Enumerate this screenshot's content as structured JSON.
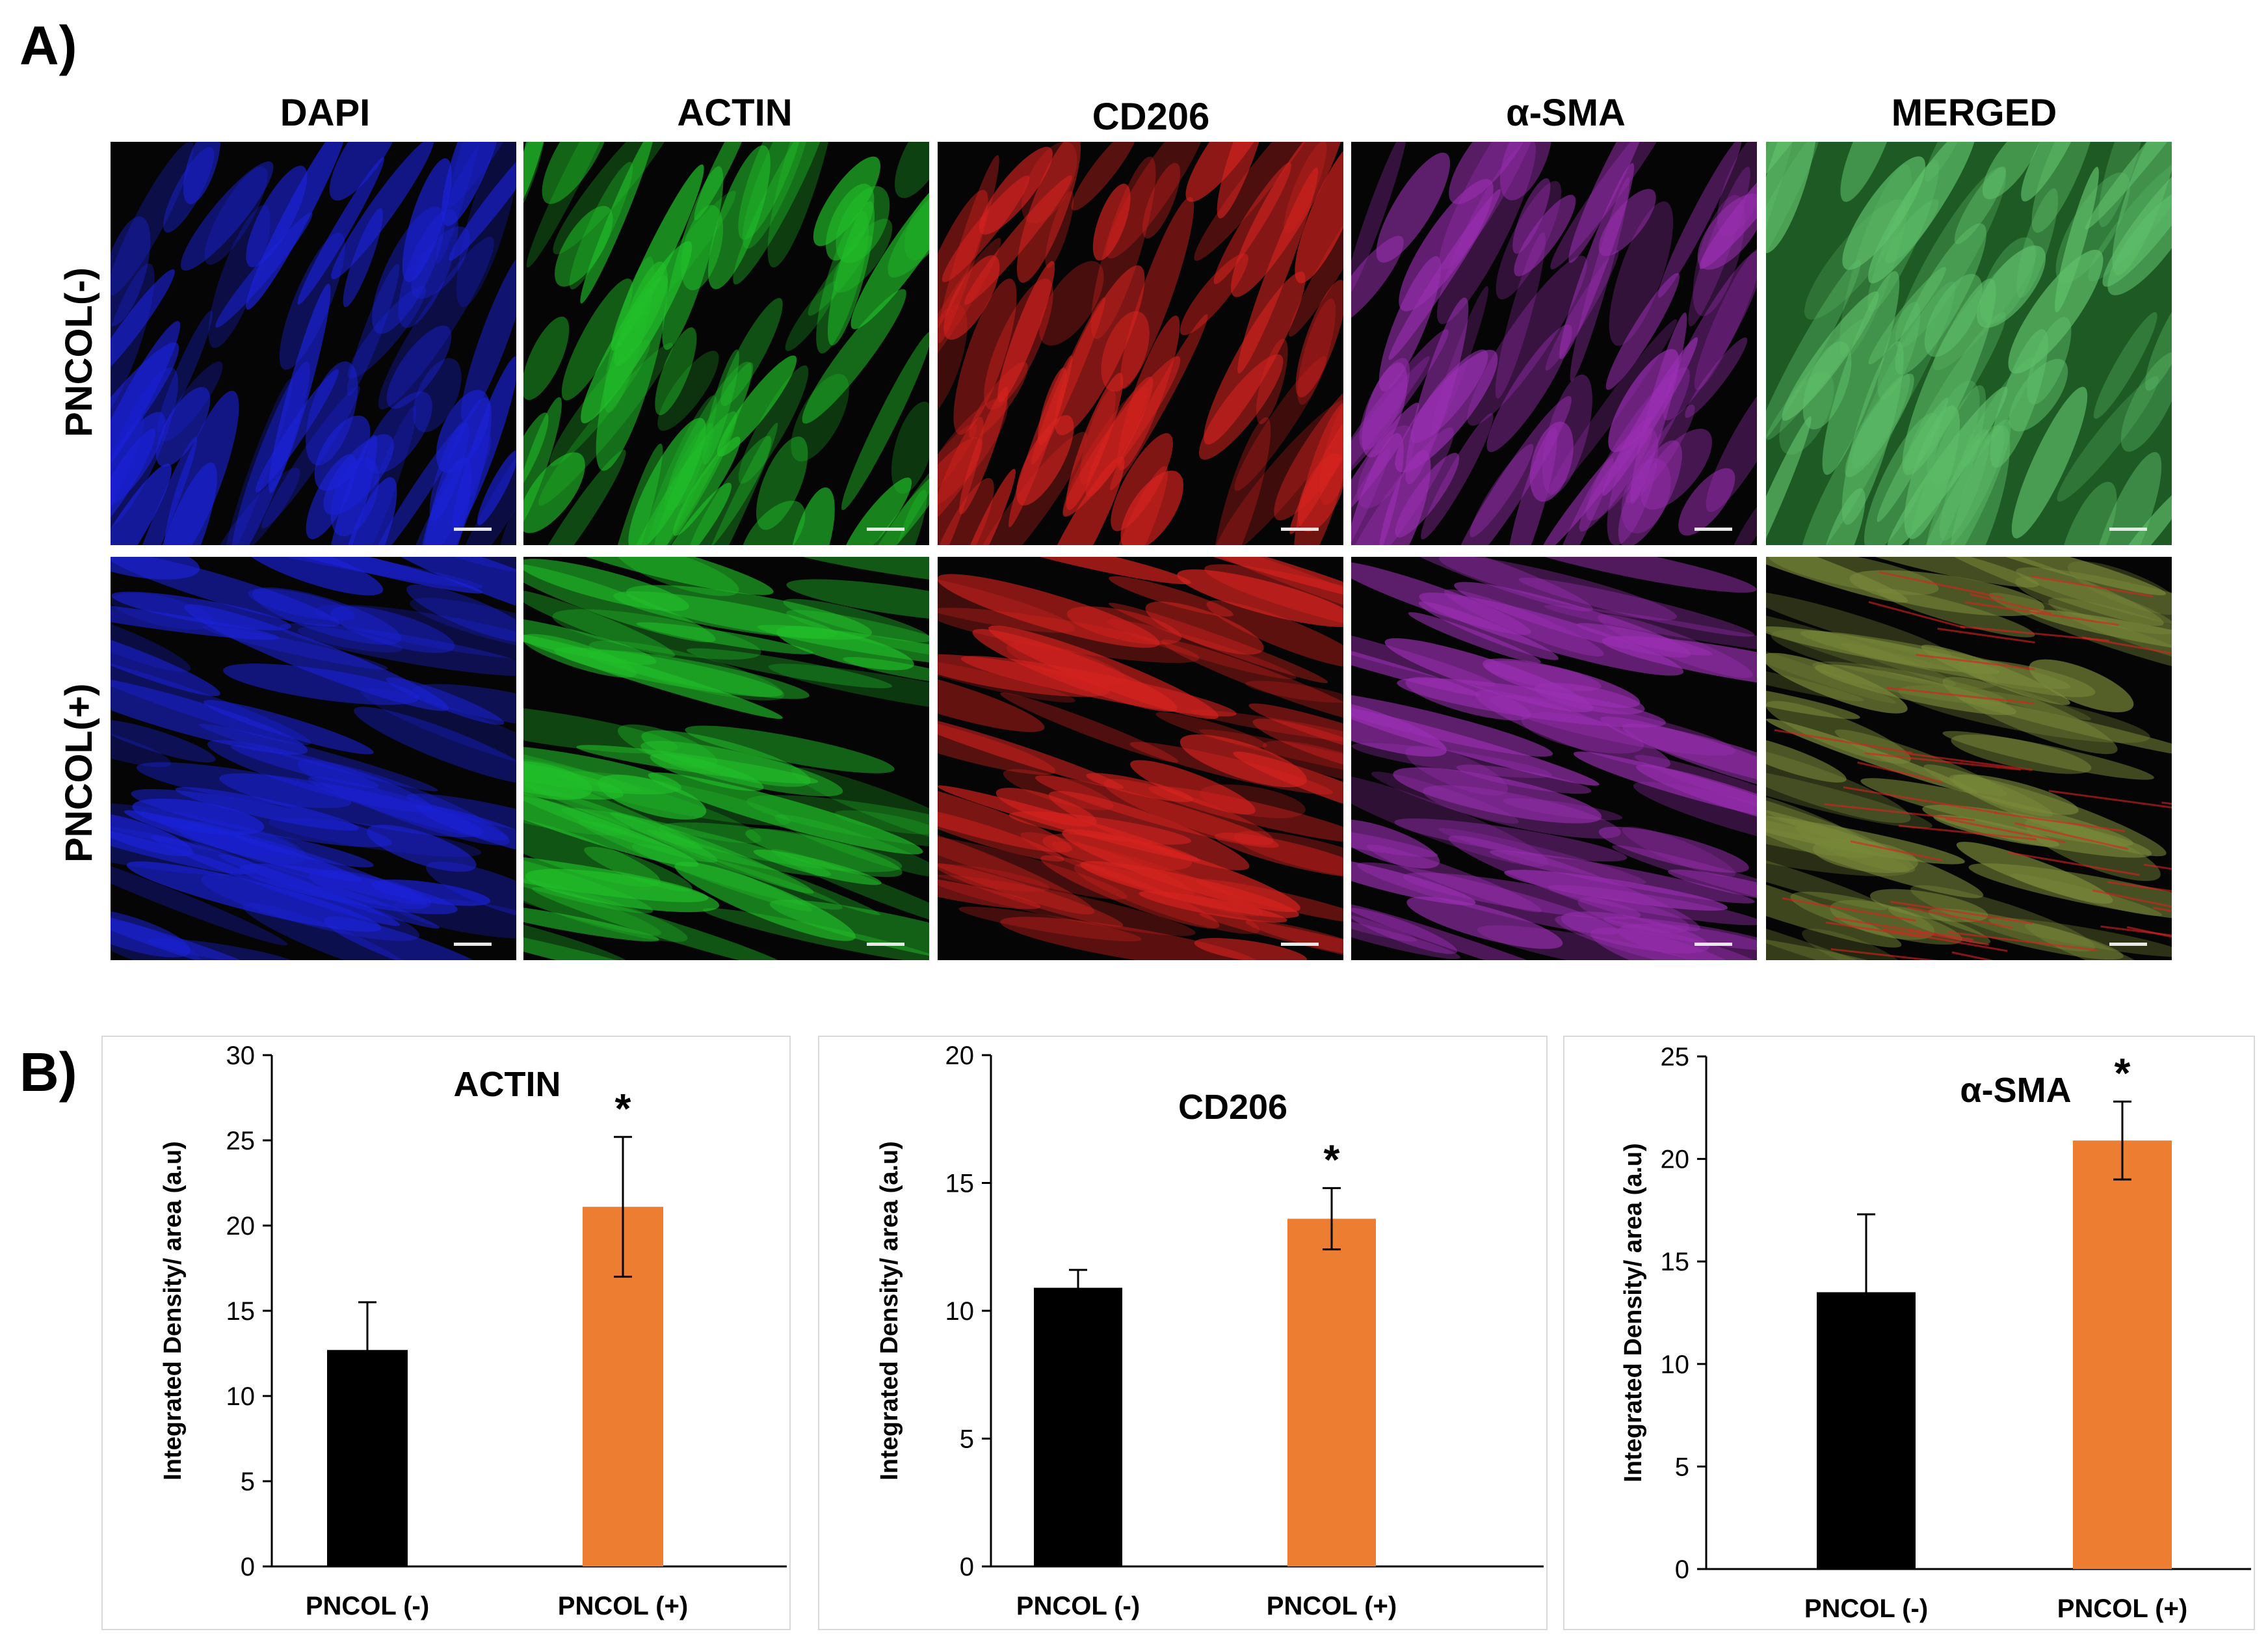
{
  "panel_a": {
    "label": "A)",
    "columns": [
      "DAPI",
      "ACTIN",
      "CD206",
      "α-SMA",
      "MERGED"
    ],
    "rows": [
      "PNCOL(-)",
      "PNCOL(+)"
    ],
    "channel_colors": {
      "DAPI": "#1b22d8",
      "ACTIN": "#22c02a",
      "CD206": "#d8231f",
      "α-SMA": "#9b2fb3",
      "MERGED": "#3fae4f"
    }
  },
  "panel_b": {
    "label": "B)"
  },
  "chart_data": [
    {
      "type": "bar",
      "title": "ACTIN",
      "categories": [
        "PNCOL (-)",
        "PNCOL (+)"
      ],
      "values": [
        12.7,
        21.1
      ],
      "errors": [
        2.8,
        4.1
      ],
      "colors": [
        "#000000",
        "#ed7d31"
      ],
      "significance": [
        "",
        "*"
      ],
      "ylabel": "Integrated Density/ area (a.u)",
      "ylim": [
        0,
        30
      ],
      "yticks": [
        0,
        5,
        10,
        15,
        20,
        25,
        30
      ],
      "grid": false
    },
    {
      "type": "bar",
      "title": "CD206",
      "categories": [
        "PNCOL (-)",
        "PNCOL (+)"
      ],
      "values": [
        10.9,
        13.6
      ],
      "errors": [
        0.7,
        1.2
      ],
      "colors": [
        "#000000",
        "#ed7d31"
      ],
      "significance": [
        "",
        "*"
      ],
      "ylabel": "Integrated Density/ area (a.u)",
      "ylim": [
        0,
        20
      ],
      "yticks": [
        0,
        5,
        10,
        15,
        20
      ],
      "grid": false
    },
    {
      "type": "bar",
      "title": "α-SMA",
      "categories": [
        "PNCOL (-)",
        "PNCOL (+)"
      ],
      "values": [
        13.5,
        20.9
      ],
      "errors": [
        3.8,
        1.9
      ],
      "colors": [
        "#000000",
        "#ed7d31"
      ],
      "significance": [
        "",
        "*"
      ],
      "ylabel": "Integrated Density/ area (a.u)",
      "ylim": [
        0,
        25
      ],
      "yticks": [
        0,
        5,
        10,
        15,
        20,
        25
      ],
      "grid": false
    }
  ]
}
